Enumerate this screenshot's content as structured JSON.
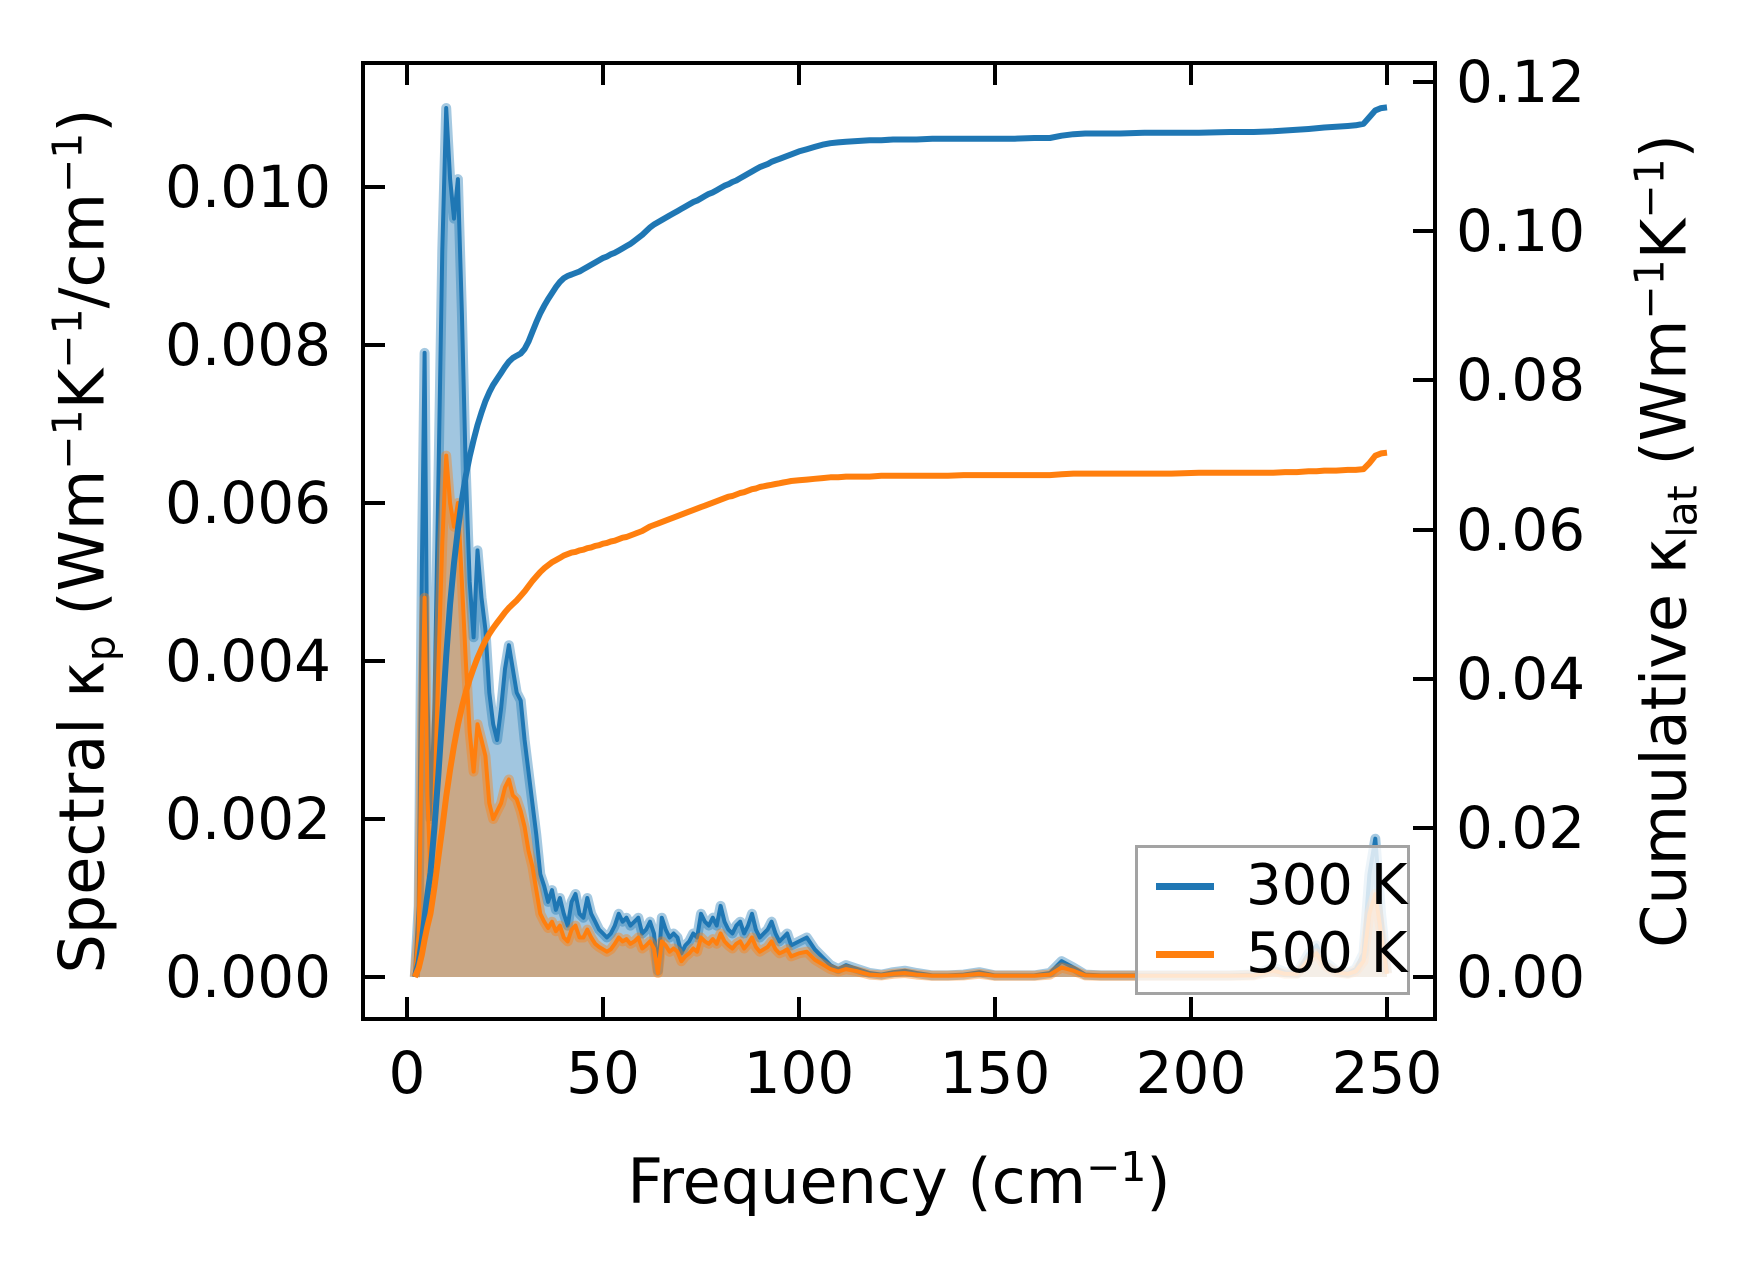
{
  "figure": {
    "background": "#ffffff",
    "title": ""
  },
  "chart_data": {
    "type": "area+line",
    "subtype": "dual-y-axis spectral/cumulative thermal conductivity plot",
    "title": "",
    "xlabel": "Frequency (cm−1)",
    "ylabel_left": "Spectral κp (Wm−1K−1/cm−1)",
    "ylabel_right": "Cumulative κlat (Wm−1K−1)",
    "xlabel_parts": [
      {
        "t": "Frequency (cm"
      },
      {
        "t": "−1",
        "s": "sup"
      },
      {
        "t": ")"
      }
    ],
    "ylabel_left_parts": [
      {
        "t": "Spectral κ"
      },
      {
        "t": "p",
        "s": "sub"
      },
      {
        "t": " (Wm"
      },
      {
        "t": "−1",
        "s": "sup"
      },
      {
        "t": "K"
      },
      {
        "t": "−1",
        "s": "sup"
      },
      {
        "t": "/cm"
      },
      {
        "t": "−1",
        "s": "sup"
      },
      {
        "t": ")"
      }
    ],
    "ylabel_right_parts": [
      {
        "t": "Cumulative κ"
      },
      {
        "t": "lat",
        "s": "sub"
      },
      {
        "t": " (Wm"
      },
      {
        "t": "−1",
        "s": "sup"
      },
      {
        "t": "K"
      },
      {
        "t": "−1",
        "s": "sup"
      },
      {
        "t": ")"
      }
    ],
    "x_axis": {
      "lim": [
        -11.22,
        262.24
      ],
      "ticks": [
        0,
        50,
        100,
        150,
        200,
        250
      ],
      "tick_labels": [
        "0",
        "50",
        "100",
        "150",
        "200",
        "250"
      ]
    },
    "y_axis_left": {
      "lim": [
        -0.000532,
        0.01157
      ],
      "ticks": [
        0.0,
        0.002,
        0.004,
        0.006,
        0.008,
        0.01
      ],
      "tick_labels": [
        "0.000",
        "0.002",
        "0.004",
        "0.006",
        "0.008",
        "0.010"
      ]
    },
    "y_axis_right": {
      "lim": [
        -0.005632,
        0.122553
      ],
      "ticks": [
        0.0,
        0.02,
        0.04,
        0.06,
        0.08,
        0.1,
        0.12
      ],
      "tick_labels": [
        "0.00",
        "0.02",
        "0.04",
        "0.06",
        "0.08",
        "0.10",
        "0.12"
      ]
    },
    "grid": false,
    "colors": {
      "blue_300K": "#1f77b4",
      "orange_500K": "#ff7f0e",
      "fill_alpha": 0.42,
      "halo_alpha": 0.4
    },
    "x": [
      2,
      3,
      3.8,
      4.5,
      5.2,
      6,
      7,
      8,
      9,
      10,
      11,
      12,
      13,
      14,
      15,
      16,
      17,
      18,
      19,
      20,
      21,
      22,
      23,
      24,
      25,
      26,
      27,
      28,
      29,
      30,
      31,
      32,
      33,
      34,
      35,
      36,
      37,
      38,
      39,
      40,
      41,
      42,
      43,
      44,
      45,
      46,
      47,
      48,
      49,
      50,
      51,
      52,
      53,
      54,
      55,
      56,
      57,
      58,
      59,
      60,
      61,
      62,
      63,
      64,
      65,
      66,
      67,
      68,
      69,
      70,
      71,
      72,
      73,
      74,
      75,
      76,
      77,
      78,
      79,
      80,
      81,
      82,
      83,
      84,
      85,
      86,
      87,
      88,
      89,
      90,
      91,
      92,
      93,
      94,
      95,
      96,
      97,
      98,
      100,
      102,
      104,
      106,
      108,
      110,
      112,
      115,
      118,
      121,
      124,
      127,
      130,
      134,
      138,
      142,
      146,
      150,
      155,
      160,
      164,
      167,
      170,
      173,
      177,
      182,
      188,
      195,
      202,
      210,
      216,
      221,
      224,
      227,
      230,
      232,
      234,
      237,
      240,
      242,
      244,
      245.5,
      247,
      248.5,
      250
    ],
    "series": [
      {
        "name": "300 K spectral",
        "axis": "left",
        "style": "area+line",
        "color": "#1f77b4",
        "y": [
          0,
          0.0009,
          0.0052,
          0.0079,
          0.0036,
          0.002,
          0.0034,
          0.0062,
          0.0092,
          0.011,
          0.0101,
          0.0096,
          0.0101,
          0.0084,
          0.0064,
          0.005,
          0.0043,
          0.0054,
          0.0048,
          0.0044,
          0.0036,
          0.0032,
          0.003,
          0.0034,
          0.0039,
          0.0042,
          0.0039,
          0.0036,
          0.0035,
          0.003,
          0.0026,
          0.0022,
          0.0018,
          0.0013,
          0.00115,
          0.00095,
          0.0011,
          0.00085,
          0.001,
          0.0008,
          0.00065,
          0.00095,
          0.00105,
          0.0008,
          0.00075,
          0.001,
          0.0008,
          0.0007,
          0.0006,
          0.00055,
          0.0005,
          0.00055,
          0.00065,
          0.0008,
          0.0007,
          0.00075,
          0.00065,
          0.0007,
          0.00075,
          0.00055,
          0.0006,
          0.0007,
          0.00055,
          8e-05,
          0.00075,
          0.0006,
          0.0005,
          0.00055,
          0.0005,
          0.0003,
          0.0004,
          0.00045,
          0.00055,
          0.0005,
          0.0008,
          0.0007,
          0.00065,
          0.00075,
          0.00065,
          0.0009,
          0.0007,
          0.0006,
          0.00055,
          0.00065,
          0.0007,
          0.00055,
          0.00065,
          0.0008,
          0.0006,
          0.0005,
          0.00055,
          0.0006,
          0.0007,
          0.00055,
          0.00045,
          0.0005,
          0.00055,
          0.0004,
          0.00045,
          0.0005,
          0.00035,
          0.00025,
          0.00015,
          0.0001,
          0.00015,
          0.0001,
          5e-05,
          3e-05,
          6e-05,
          8e-05,
          5e-05,
          2e-05,
          2e-05,
          3e-05,
          6e-05,
          2e-05,
          2e-05,
          2e-05,
          5e-05,
          0.0002,
          0.00012,
          3e-05,
          2e-05,
          2e-05,
          2e-05,
          2e-05,
          2e-05,
          2e-05,
          3e-05,
          0.00012,
          6e-05,
          5e-05,
          0.0003,
          0.0004,
          0.0002,
          8e-05,
          5e-05,
          0.0001,
          0.0003,
          0.0013,
          0.00175,
          0.0008,
          5e-05
        ]
      },
      {
        "name": "500 K spectral",
        "axis": "left",
        "style": "area+line",
        "color": "#ff7f0e",
        "y": [
          0,
          0.00055,
          0.0031,
          0.0048,
          0.0023,
          0.0013,
          0.0022,
          0.0039,
          0.0055,
          0.0066,
          0.006,
          0.0057,
          0.006,
          0.005,
          0.004,
          0.0031,
          0.0026,
          0.0032,
          0.003,
          0.0028,
          0.0022,
          0.002,
          0.0021,
          0.0022,
          0.0024,
          0.0025,
          0.0023,
          0.00225,
          0.0021,
          0.0019,
          0.0016,
          0.0014,
          0.0011,
          0.0008,
          0.0007,
          0.00062,
          0.0007,
          0.00058,
          0.00065,
          0.0005,
          0.00045,
          0.0006,
          0.00065,
          0.0005,
          0.0005,
          0.0006,
          0.0005,
          0.00042,
          0.00038,
          0.00035,
          0.00032,
          0.00035,
          0.00042,
          0.0005,
          0.00045,
          0.00048,
          0.00042,
          0.00045,
          0.0005,
          0.00036,
          0.0004,
          0.00045,
          0.00036,
          5e-05,
          0.00045,
          0.0004,
          0.00032,
          0.00036,
          0.00032,
          0.0002,
          0.00026,
          0.0003,
          0.00036,
          0.00032,
          0.0005,
          0.00045,
          0.00042,
          0.00048,
          0.00042,
          0.00055,
          0.00045,
          0.0004,
          0.00036,
          0.00042,
          0.00045,
          0.00036,
          0.00042,
          0.0005,
          0.00038,
          0.00032,
          0.00035,
          0.00038,
          0.00045,
          0.00035,
          0.0003,
          0.00032,
          0.00035,
          0.00026,
          0.0003,
          0.00032,
          0.00022,
          0.00016,
          0.0001,
          7e-05,
          0.0001,
          7e-05,
          3e-05,
          2e-05,
          4e-05,
          5e-05,
          3e-05,
          1.5e-05,
          1.5e-05,
          2e-05,
          4e-05,
          1.5e-05,
          1.5e-05,
          1.5e-05,
          3e-05,
          0.00012,
          8e-05,
          2e-05,
          1.5e-05,
          1.5e-05,
          1.5e-05,
          1.5e-05,
          1.5e-05,
          1.5e-05,
          2e-05,
          8e-05,
          4e-05,
          4e-05,
          0.00022,
          0.0003,
          0.00015,
          6e-05,
          4e-05,
          7e-05,
          0.0002,
          0.0008,
          0.00105,
          0.00055,
          4e-05
        ]
      },
      {
        "name": "300 K cumulative",
        "axis": "right",
        "style": "line",
        "color": "#1f77b4",
        "y": [
          0,
          0.002,
          0.005,
          0.008,
          0.011,
          0.014,
          0.02,
          0.027,
          0.035,
          0.043,
          0.05,
          0.0555,
          0.06,
          0.064,
          0.0672,
          0.0698,
          0.072,
          0.074,
          0.0757,
          0.0772,
          0.0784,
          0.0794,
          0.0802,
          0.081,
          0.0818,
          0.0825,
          0.083,
          0.0833,
          0.0836,
          0.0842,
          0.0852,
          0.0865,
          0.0878,
          0.089,
          0.09,
          0.0909,
          0.0917,
          0.0925,
          0.0932,
          0.0937,
          0.094,
          0.0942,
          0.0944,
          0.0946,
          0.0949,
          0.0952,
          0.0955,
          0.0958,
          0.0961,
          0.0964,
          0.0966,
          0.0969,
          0.0971,
          0.0974,
          0.0977,
          0.098,
          0.0983,
          0.0987,
          0.0991,
          0.0995,
          0.1,
          0.1005,
          0.1009,
          0.1012,
          0.1015,
          0.1018,
          0.1021,
          0.1024,
          0.1027,
          0.103,
          0.1033,
          0.1036,
          0.1039,
          0.1041,
          0.1044,
          0.1047,
          0.105,
          0.1052,
          0.1055,
          0.1058,
          0.1061,
          0.1063,
          0.1066,
          0.1068,
          0.1071,
          0.1074,
          0.1077,
          0.108,
          0.1083,
          0.1086,
          0.1088,
          0.109,
          0.1093,
          0.1095,
          0.1097,
          0.1099,
          0.1101,
          0.1103,
          0.1107,
          0.111,
          0.1113,
          0.1116,
          0.1118,
          0.1119,
          0.112,
          0.1121,
          0.1122,
          0.1122,
          0.1123,
          0.1123,
          0.1123,
          0.1124,
          0.1124,
          0.1124,
          0.1124,
          0.1124,
          0.1124,
          0.1125,
          0.1125,
          0.1128,
          0.113,
          0.1131,
          0.1131,
          0.1131,
          0.1132,
          0.1132,
          0.1132,
          0.1133,
          0.1133,
          0.1134,
          0.1135,
          0.1136,
          0.1137,
          0.1138,
          0.1139,
          0.114,
          0.1141,
          0.1142,
          0.1144,
          0.1153,
          0.1162,
          0.1165,
          0.1166
        ]
      },
      {
        "name": "500 K cumulative",
        "axis": "right",
        "style": "line",
        "color": "#ff7f0e",
        "y": [
          0,
          0.0012,
          0.003,
          0.005,
          0.0068,
          0.0085,
          0.012,
          0.016,
          0.02,
          0.0242,
          0.0278,
          0.031,
          0.0338,
          0.0362,
          0.0382,
          0.0399,
          0.0414,
          0.0428,
          0.044,
          0.0451,
          0.046,
          0.0468,
          0.0475,
          0.0482,
          0.0489,
          0.0495,
          0.05,
          0.0505,
          0.0511,
          0.0517,
          0.0524,
          0.0531,
          0.0537,
          0.0543,
          0.0548,
          0.0552,
          0.0556,
          0.0559,
          0.0562,
          0.0565,
          0.0567,
          0.0569,
          0.057,
          0.0572,
          0.0573,
          0.0575,
          0.0576,
          0.0578,
          0.0579,
          0.0581,
          0.0582,
          0.0584,
          0.0585,
          0.0587,
          0.0589,
          0.059,
          0.0592,
          0.0594,
          0.0596,
          0.0598,
          0.0601,
          0.0604,
          0.0606,
          0.0608,
          0.061,
          0.0612,
          0.0614,
          0.0616,
          0.0618,
          0.062,
          0.0622,
          0.0624,
          0.0626,
          0.0628,
          0.063,
          0.0632,
          0.0634,
          0.0636,
          0.0638,
          0.064,
          0.0642,
          0.0644,
          0.0645,
          0.0647,
          0.0649,
          0.065,
          0.0652,
          0.0654,
          0.0655,
          0.0657,
          0.0658,
          0.0659,
          0.066,
          0.0661,
          0.0662,
          0.0663,
          0.0664,
          0.0665,
          0.0666,
          0.0667,
          0.0668,
          0.0669,
          0.067,
          0.067,
          0.0671,
          0.0671,
          0.0671,
          0.0672,
          0.0672,
          0.0672,
          0.0672,
          0.0672,
          0.0672,
          0.0673,
          0.0673,
          0.0673,
          0.0673,
          0.0673,
          0.0673,
          0.0674,
          0.0675,
          0.0675,
          0.0675,
          0.0675,
          0.0675,
          0.0675,
          0.0676,
          0.0676,
          0.0676,
          0.0676,
          0.0677,
          0.0677,
          0.0678,
          0.0678,
          0.0679,
          0.0679,
          0.068,
          0.068,
          0.0681,
          0.0689,
          0.0699,
          0.0702,
          0.0703
        ]
      }
    ],
    "legend": {
      "position": "lower right",
      "entries": [
        {
          "label": "300 K",
          "color": "#1f77b4"
        },
        {
          "label": "500 K",
          "color": "#ff7f0e"
        }
      ]
    }
  }
}
